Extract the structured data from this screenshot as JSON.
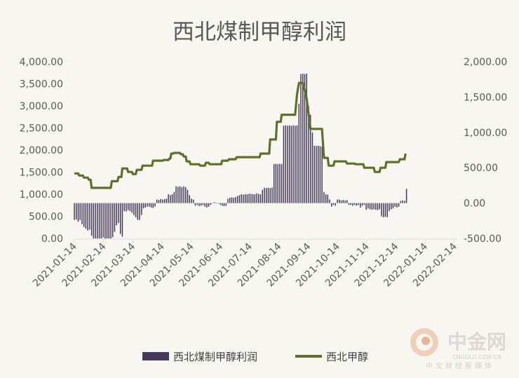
{
  "chart_data": {
    "type": "bar+line",
    "title": "西北煤制甲醇利润",
    "left_axis": {
      "min": 0,
      "max": 4000,
      "step": 500,
      "tick_labels": [
        "0.00",
        "500.00",
        "1,000.00",
        "1,500.00",
        "2,000.00",
        "2,500.00",
        "3,000.00",
        "3,500.00",
        "4,000.00"
      ]
    },
    "right_axis": {
      "min": -500,
      "max": 2000,
      "step": 500,
      "tick_labels": [
        "-500.00",
        "0.00",
        "500.00",
        "1,000.00",
        "1,500.00",
        "2,000.00"
      ]
    },
    "x_tick_labels": [
      "2021-01-14",
      "2021-02-14",
      "2021-03-14",
      "2021-04-14",
      "2021-05-14",
      "2021-06-14",
      "2021-07-14",
      "2021-08-14",
      "2021-09-14",
      "2021-10-14",
      "2021-11-14",
      "2021-12-14",
      "2022-01-14",
      "2022-02-14"
    ],
    "x_range_days": [
      0,
      396
    ],
    "bar_baseline_left": 800,
    "series": [
      {
        "name": "西北煤制甲醇利润",
        "kind": "bar",
        "axis": "left",
        "color": "#463a5c",
        "points": [
          {
            "x": 0,
            "y": 420
          },
          {
            "x": 2,
            "y": 430
          },
          {
            "x": 4,
            "y": 380
          },
          {
            "x": 6,
            "y": 420
          },
          {
            "x": 8,
            "y": 320
          },
          {
            "x": 10,
            "y": 260
          },
          {
            "x": 12,
            "y": 220
          },
          {
            "x": 14,
            "y": 180
          },
          {
            "x": 16,
            "y": 200
          },
          {
            "x": 18,
            "y": 60
          },
          {
            "x": 20,
            "y": 0
          },
          {
            "x": 22,
            "y": 0
          },
          {
            "x": 24,
            "y": 0
          },
          {
            "x": 26,
            "y": 0
          },
          {
            "x": 28,
            "y": 0
          },
          {
            "x": 30,
            "y": 20
          },
          {
            "x": 32,
            "y": 0
          },
          {
            "x": 34,
            "y": 0
          },
          {
            "x": 36,
            "y": 0
          },
          {
            "x": 38,
            "y": 0
          },
          {
            "x": 40,
            "y": 30
          },
          {
            "x": 42,
            "y": 150
          },
          {
            "x": 44,
            "y": 300
          },
          {
            "x": 46,
            "y": 350
          },
          {
            "x": 48,
            "y": 100
          },
          {
            "x": 50,
            "y": 40
          },
          {
            "x": 52,
            "y": 620
          },
          {
            "x": 54,
            "y": 610
          },
          {
            "x": 56,
            "y": 640
          },
          {
            "x": 58,
            "y": 620
          },
          {
            "x": 60,
            "y": 580
          },
          {
            "x": 62,
            "y": 530
          },
          {
            "x": 64,
            "y": 480
          },
          {
            "x": 66,
            "y": 420
          },
          {
            "x": 68,
            "y": 420
          },
          {
            "x": 70,
            "y": 530
          },
          {
            "x": 72,
            "y": 680
          },
          {
            "x": 74,
            "y": 700
          },
          {
            "x": 76,
            "y": 720
          },
          {
            "x": 78,
            "y": 720
          },
          {
            "x": 80,
            "y": 700
          },
          {
            "x": 82,
            "y": 690
          },
          {
            "x": 84,
            "y": 720
          },
          {
            "x": 86,
            "y": 880
          },
          {
            "x": 88,
            "y": 870
          },
          {
            "x": 90,
            "y": 890
          },
          {
            "x": 92,
            "y": 880
          },
          {
            "x": 94,
            "y": 890
          },
          {
            "x": 96,
            "y": 900
          },
          {
            "x": 98,
            "y": 1000
          },
          {
            "x": 100,
            "y": 980
          },
          {
            "x": 102,
            "y": 1000
          },
          {
            "x": 104,
            "y": 1050
          },
          {
            "x": 106,
            "y": 1180
          },
          {
            "x": 108,
            "y": 1170
          },
          {
            "x": 110,
            "y": 1180
          },
          {
            "x": 112,
            "y": 1160
          },
          {
            "x": 114,
            "y": 1180
          },
          {
            "x": 116,
            "y": 1160
          },
          {
            "x": 118,
            "y": 1100
          },
          {
            "x": 120,
            "y": 980
          },
          {
            "x": 122,
            "y": 900
          },
          {
            "x": 124,
            "y": 880
          },
          {
            "x": 126,
            "y": 740
          },
          {
            "x": 128,
            "y": 760
          },
          {
            "x": 130,
            "y": 730
          },
          {
            "x": 132,
            "y": 740
          },
          {
            "x": 134,
            "y": 760
          },
          {
            "x": 136,
            "y": 720
          },
          {
            "x": 138,
            "y": 700
          },
          {
            "x": 140,
            "y": 720
          },
          {
            "x": 142,
            "y": 760
          },
          {
            "x": 144,
            "y": 790
          },
          {
            "x": 146,
            "y": 820
          },
          {
            "x": 148,
            "y": 790
          },
          {
            "x": 150,
            "y": 800
          },
          {
            "x": 152,
            "y": 760
          },
          {
            "x": 154,
            "y": 740
          },
          {
            "x": 156,
            "y": 730
          },
          {
            "x": 158,
            "y": 740
          },
          {
            "x": 160,
            "y": 900
          },
          {
            "x": 162,
            "y": 920
          },
          {
            "x": 164,
            "y": 930
          },
          {
            "x": 166,
            "y": 920
          },
          {
            "x": 168,
            "y": 940
          },
          {
            "x": 170,
            "y": 960
          },
          {
            "x": 172,
            "y": 980
          },
          {
            "x": 174,
            "y": 1000
          },
          {
            "x": 176,
            "y": 990
          },
          {
            "x": 178,
            "y": 1000
          },
          {
            "x": 180,
            "y": 1000
          },
          {
            "x": 182,
            "y": 1010
          },
          {
            "x": 184,
            "y": 1010
          },
          {
            "x": 186,
            "y": 1000
          },
          {
            "x": 188,
            "y": 1000
          },
          {
            "x": 190,
            "y": 1020
          },
          {
            "x": 192,
            "y": 1010
          },
          {
            "x": 194,
            "y": 1000
          },
          {
            "x": 196,
            "y": 1100
          },
          {
            "x": 198,
            "y": 1150
          },
          {
            "x": 200,
            "y": 1140
          },
          {
            "x": 202,
            "y": 1150
          },
          {
            "x": 204,
            "y": 1140
          },
          {
            "x": 206,
            "y": 1150
          },
          {
            "x": 208,
            "y": 1680
          },
          {
            "x": 210,
            "y": 1690
          },
          {
            "x": 212,
            "y": 1680
          },
          {
            "x": 214,
            "y": 1690
          },
          {
            "x": 216,
            "y": 1680
          },
          {
            "x": 218,
            "y": 2550
          },
          {
            "x": 220,
            "y": 2560
          },
          {
            "x": 222,
            "y": 2550
          },
          {
            "x": 224,
            "y": 2560
          },
          {
            "x": 226,
            "y": 2550
          },
          {
            "x": 228,
            "y": 2560
          },
          {
            "x": 230,
            "y": 2550
          },
          {
            "x": 232,
            "y": 2560
          },
          {
            "x": 234,
            "y": 3050
          },
          {
            "x": 236,
            "y": 3720
          },
          {
            "x": 238,
            "y": 3730
          },
          {
            "x": 240,
            "y": 3720
          },
          {
            "x": 242,
            "y": 3730
          },
          {
            "x": 244,
            "y": 3000
          },
          {
            "x": 246,
            "y": 2800
          },
          {
            "x": 248,
            "y": 2400
          },
          {
            "x": 250,
            "y": 2100
          },
          {
            "x": 252,
            "y": 2090
          },
          {
            "x": 254,
            "y": 2100
          },
          {
            "x": 256,
            "y": 2090
          },
          {
            "x": 258,
            "y": 2080
          },
          {
            "x": 260,
            "y": 1050
          },
          {
            "x": 262,
            "y": 1000
          },
          {
            "x": 264,
            "y": 990
          },
          {
            "x": 266,
            "y": 880
          },
          {
            "x": 268,
            "y": 720
          },
          {
            "x": 270,
            "y": 760
          },
          {
            "x": 272,
            "y": 740
          },
          {
            "x": 274,
            "y": 880
          },
          {
            "x": 276,
            "y": 880
          },
          {
            "x": 278,
            "y": 860
          },
          {
            "x": 280,
            "y": 870
          },
          {
            "x": 282,
            "y": 860
          },
          {
            "x": 284,
            "y": 870
          },
          {
            "x": 286,
            "y": 760
          },
          {
            "x": 288,
            "y": 760
          },
          {
            "x": 290,
            "y": 740
          },
          {
            "x": 292,
            "y": 760
          },
          {
            "x": 294,
            "y": 740
          },
          {
            "x": 296,
            "y": 760
          },
          {
            "x": 298,
            "y": 700
          },
          {
            "x": 300,
            "y": 740
          },
          {
            "x": 302,
            "y": 760
          },
          {
            "x": 304,
            "y": 650
          },
          {
            "x": 306,
            "y": 680
          },
          {
            "x": 308,
            "y": 660
          },
          {
            "x": 310,
            "y": 650
          },
          {
            "x": 312,
            "y": 660
          },
          {
            "x": 314,
            "y": 650
          },
          {
            "x": 316,
            "y": 640
          },
          {
            "x": 318,
            "y": 660
          },
          {
            "x": 320,
            "y": 500
          },
          {
            "x": 322,
            "y": 480
          },
          {
            "x": 324,
            "y": 490
          },
          {
            "x": 326,
            "y": 480
          },
          {
            "x": 328,
            "y": 620
          },
          {
            "x": 330,
            "y": 660
          },
          {
            "x": 332,
            "y": 680
          },
          {
            "x": 334,
            "y": 720
          },
          {
            "x": 336,
            "y": 700
          },
          {
            "x": 338,
            "y": 720
          },
          {
            "x": 340,
            "y": 850
          },
          {
            "x": 342,
            "y": 860
          },
          {
            "x": 344,
            "y": 850
          },
          {
            "x": 346,
            "y": 1120
          }
        ]
      },
      {
        "name": "西北甲醇",
        "kind": "line",
        "axis": "right",
        "color": "#5f7128",
        "points": [
          {
            "x": 0,
            "y": 420
          },
          {
            "x": 4,
            "y": 420
          },
          {
            "x": 5,
            "y": 390
          },
          {
            "x": 9,
            "y": 390
          },
          {
            "x": 10,
            "y": 360
          },
          {
            "x": 14,
            "y": 360
          },
          {
            "x": 15,
            "y": 330
          },
          {
            "x": 17,
            "y": 330
          },
          {
            "x": 18,
            "y": 215
          },
          {
            "x": 38,
            "y": 215
          },
          {
            "x": 39,
            "y": 310
          },
          {
            "x": 45,
            "y": 310
          },
          {
            "x": 46,
            "y": 370
          },
          {
            "x": 49,
            "y": 370
          },
          {
            "x": 50,
            "y": 490
          },
          {
            "x": 55,
            "y": 490
          },
          {
            "x": 56,
            "y": 440
          },
          {
            "x": 60,
            "y": 440
          },
          {
            "x": 61,
            "y": 410
          },
          {
            "x": 64,
            "y": 410
          },
          {
            "x": 65,
            "y": 470
          },
          {
            "x": 70,
            "y": 470
          },
          {
            "x": 71,
            "y": 530
          },
          {
            "x": 81,
            "y": 530
          },
          {
            "x": 82,
            "y": 600
          },
          {
            "x": 92,
            "y": 600
          },
          {
            "x": 93,
            "y": 610
          },
          {
            "x": 98,
            "y": 610
          },
          {
            "x": 99,
            "y": 630
          },
          {
            "x": 100,
            "y": 630
          },
          {
            "x": 101,
            "y": 700
          },
          {
            "x": 103,
            "y": 700
          },
          {
            "x": 104,
            "y": 710
          },
          {
            "x": 110,
            "y": 710
          },
          {
            "x": 111,
            "y": 690
          },
          {
            "x": 113,
            "y": 690
          },
          {
            "x": 114,
            "y": 660
          },
          {
            "x": 116,
            "y": 660
          },
          {
            "x": 117,
            "y": 590
          },
          {
            "x": 120,
            "y": 590
          },
          {
            "x": 121,
            "y": 550
          },
          {
            "x": 130,
            "y": 550
          },
          {
            "x": 131,
            "y": 530
          },
          {
            "x": 136,
            "y": 530
          },
          {
            "x": 137,
            "y": 570
          },
          {
            "x": 140,
            "y": 570
          },
          {
            "x": 141,
            "y": 550
          },
          {
            "x": 153,
            "y": 550
          },
          {
            "x": 154,
            "y": 600
          },
          {
            "x": 160,
            "y": 600
          },
          {
            "x": 161,
            "y": 620
          },
          {
            "x": 168,
            "y": 620
          },
          {
            "x": 169,
            "y": 650
          },
          {
            "x": 193,
            "y": 650
          },
          {
            "x": 194,
            "y": 700
          },
          {
            "x": 203,
            "y": 700
          },
          {
            "x": 204,
            "y": 900
          },
          {
            "x": 210,
            "y": 900
          },
          {
            "x": 211,
            "y": 1150
          },
          {
            "x": 215,
            "y": 1150
          },
          {
            "x": 216,
            "y": 1250
          },
          {
            "x": 230,
            "y": 1250
          },
          {
            "x": 232,
            "y": 1540
          },
          {
            "x": 234,
            "y": 1700
          },
          {
            "x": 238,
            "y": 1700
          },
          {
            "x": 240,
            "y": 1600
          },
          {
            "x": 242,
            "y": 1480
          },
          {
            "x": 246,
            "y": 1050
          },
          {
            "x": 258,
            "y": 1050
          },
          {
            "x": 260,
            "y": 640
          },
          {
            "x": 264,
            "y": 640
          },
          {
            "x": 265,
            "y": 530
          },
          {
            "x": 270,
            "y": 530
          },
          {
            "x": 271,
            "y": 590
          },
          {
            "x": 283,
            "y": 590
          },
          {
            "x": 284,
            "y": 560
          },
          {
            "x": 292,
            "y": 560
          },
          {
            "x": 293,
            "y": 550
          },
          {
            "x": 301,
            "y": 550
          },
          {
            "x": 302,
            "y": 500
          },
          {
            "x": 312,
            "y": 500
          },
          {
            "x": 313,
            "y": 440
          },
          {
            "x": 318,
            "y": 440
          },
          {
            "x": 319,
            "y": 500
          },
          {
            "x": 324,
            "y": 500
          },
          {
            "x": 325,
            "y": 580
          },
          {
            "x": 338,
            "y": 580
          },
          {
            "x": 339,
            "y": 620
          },
          {
            "x": 344,
            "y": 620
          },
          {
            "x": 345,
            "y": 700
          }
        ]
      }
    ],
    "legend": {
      "position": "bottom",
      "items": [
        {
          "label": "西北煤制甲醇利润",
          "type": "bar",
          "color": "#463a5c"
        },
        {
          "label": "西北甲醇",
          "type": "line",
          "color": "#5f7128"
        }
      ]
    },
    "grid": false
  },
  "watermark": {
    "brand": "中金网",
    "domain": "CNGOLD.COM.CN",
    "tagline": "中文财经新媒体"
  }
}
